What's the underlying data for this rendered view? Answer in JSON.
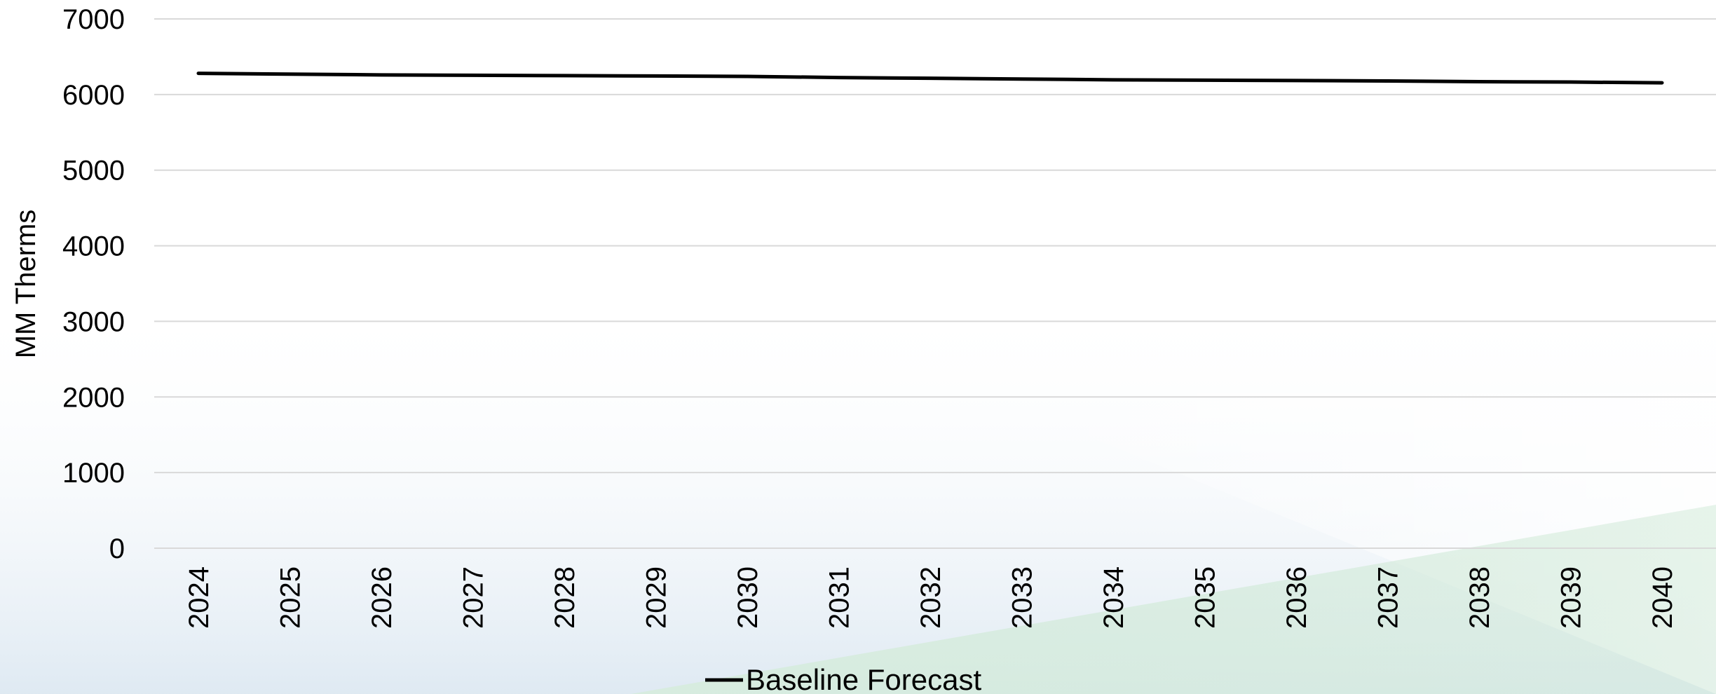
{
  "chart_data": {
    "type": "line",
    "title": "",
    "xlabel": "",
    "ylabel": "MM Therms",
    "ylim": [
      0,
      7000
    ],
    "yticks": [
      0,
      1000,
      2000,
      3000,
      4000,
      5000,
      6000,
      7000
    ],
    "grid": true,
    "legend_position": "bottom-center",
    "categories": [
      "2024",
      "2025",
      "2026",
      "2027",
      "2028",
      "2029",
      "2030",
      "2031",
      "2032",
      "2033",
      "2034",
      "2035",
      "2036",
      "2037",
      "2038",
      "2039",
      "2040"
    ],
    "series": [
      {
        "name": "Baseline Forecast",
        "color": "#000000",
        "values": [
          6280,
          6270,
          6260,
          6255,
          6250,
          6245,
          6240,
          6225,
          6215,
          6205,
          6195,
          6190,
          6185,
          6180,
          6170,
          6165,
          6155
        ]
      }
    ]
  },
  "colors": {
    "gridline": "#d9d9d9",
    "text": "#000000",
    "background_tint_blue": "#e6eef6",
    "background_tint_green": "#d7ecdc"
  }
}
